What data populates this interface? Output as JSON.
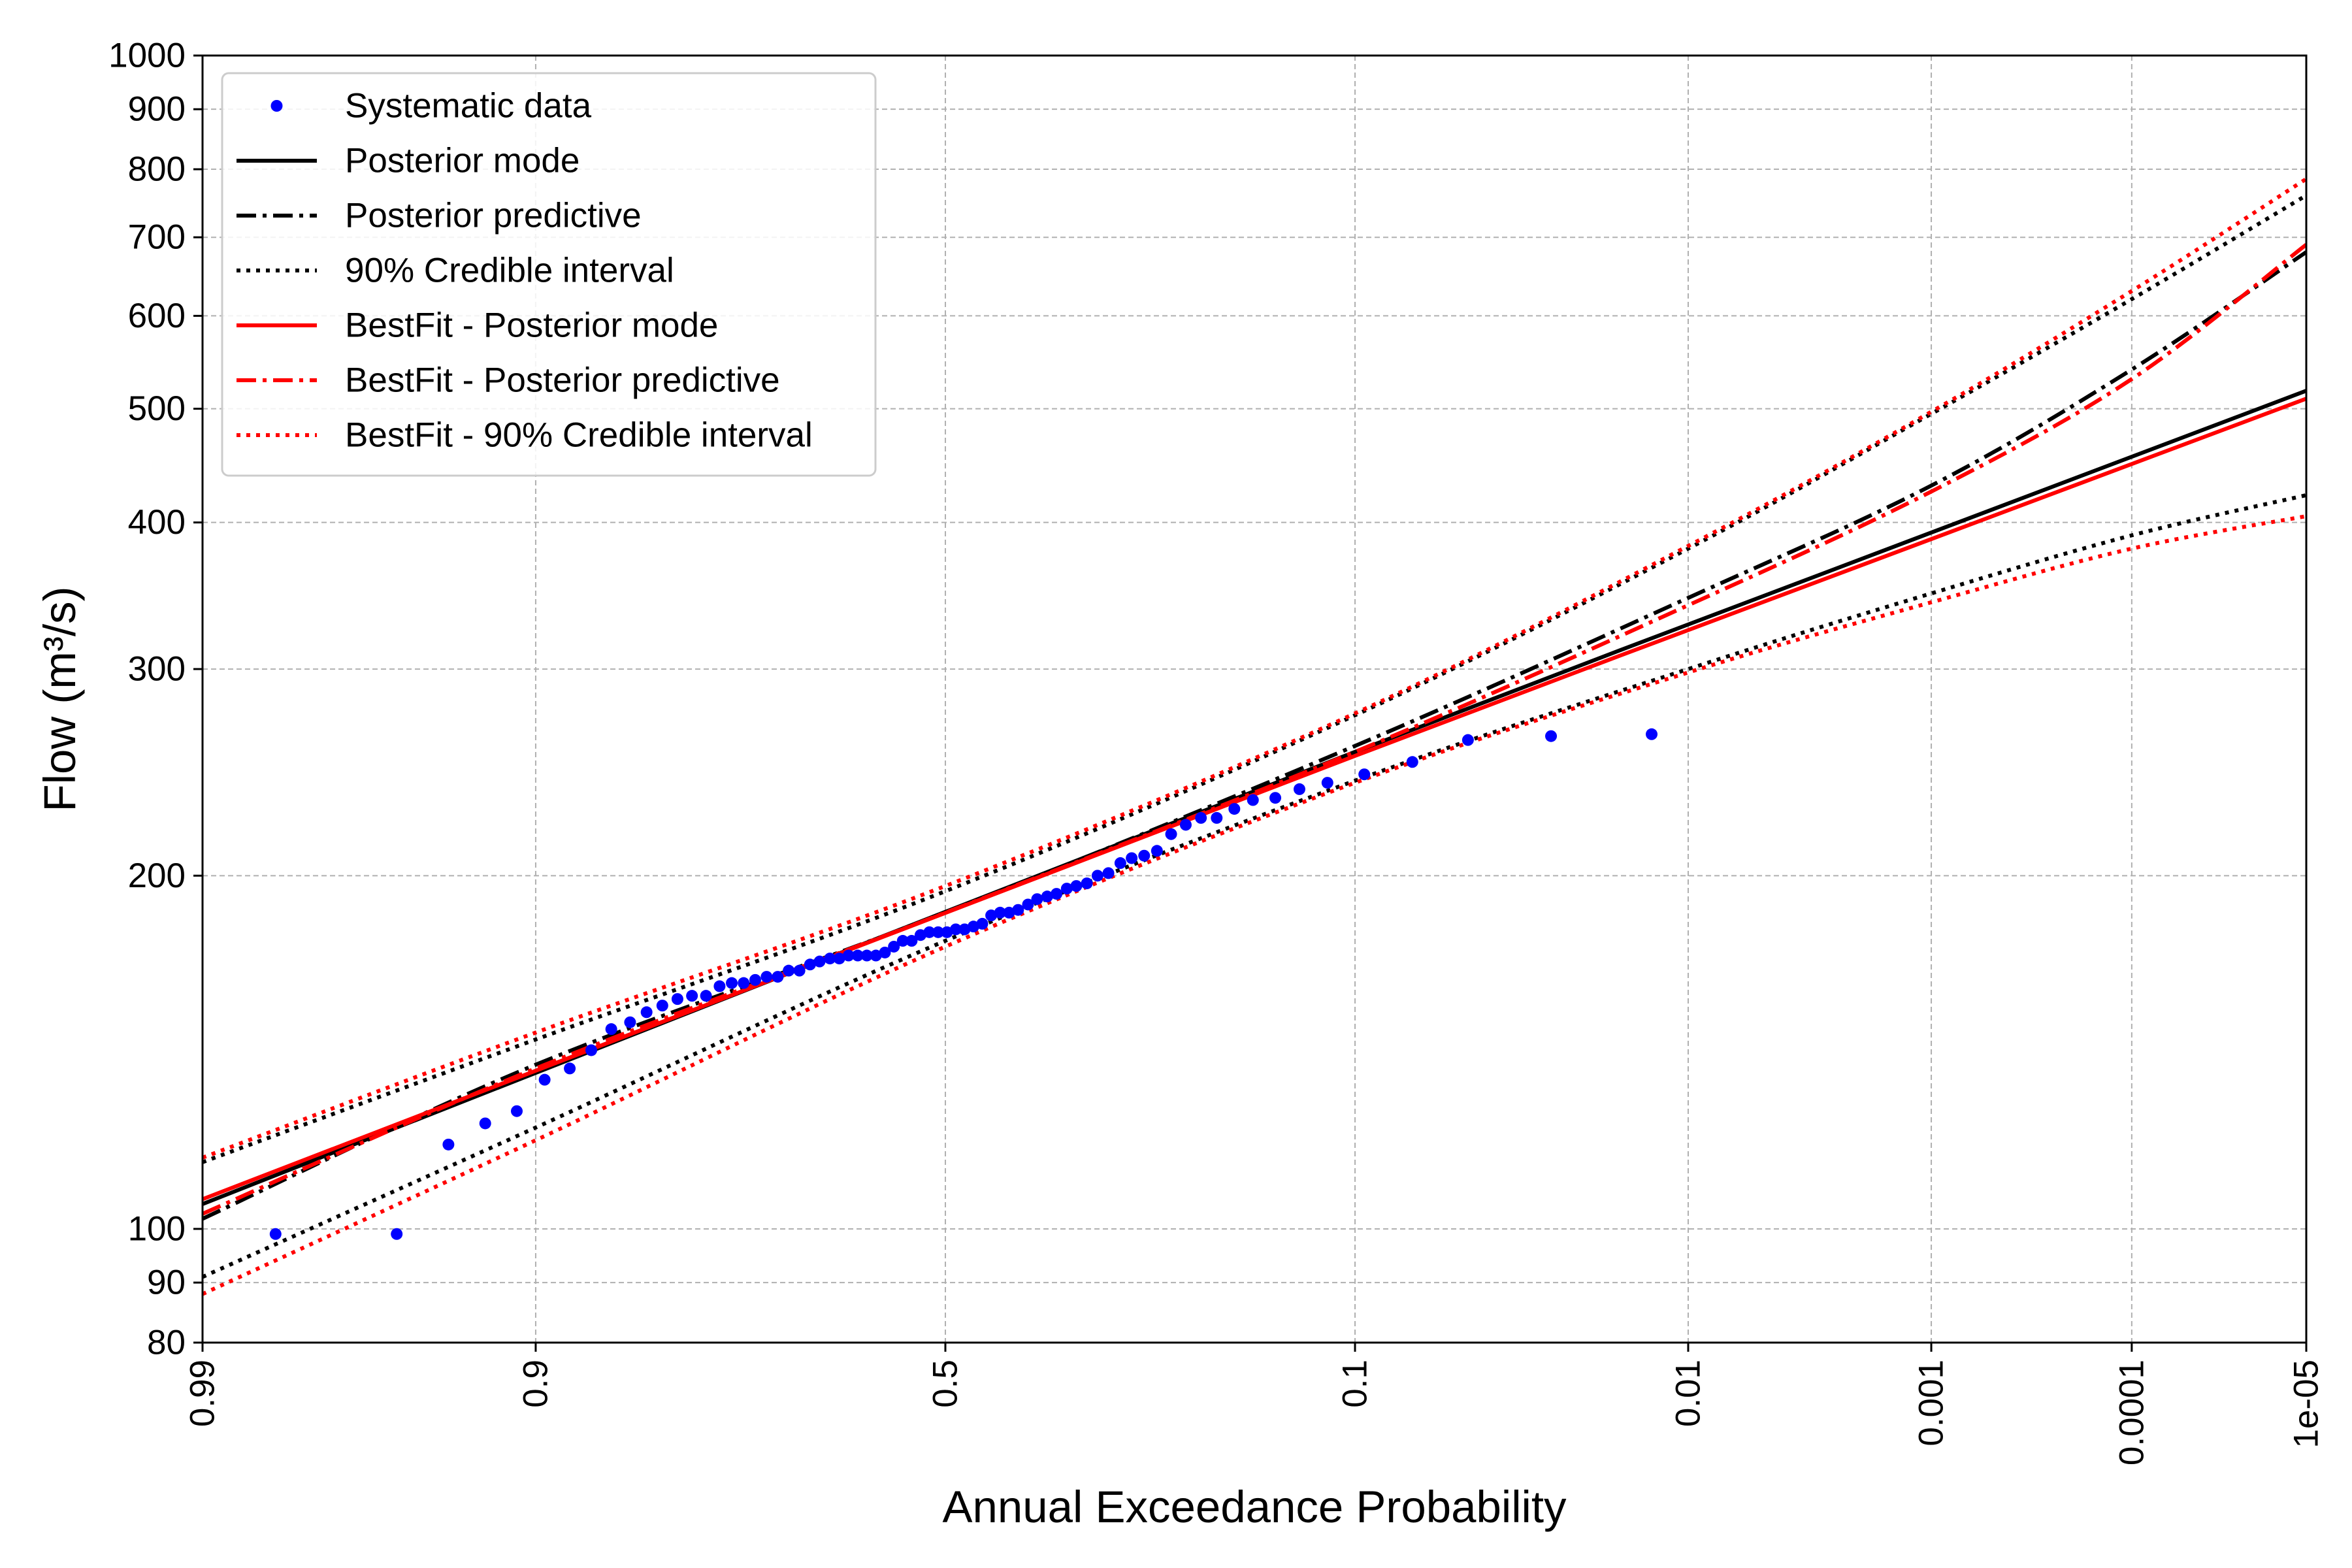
{
  "chart_data": {
    "type": "line",
    "xlabel": "Annual Exceedance Probability",
    "ylabel": "Flow (m³/s)",
    "x_scale": "normal-probability",
    "x_reversed": true,
    "xlim": [
      0.99,
      1e-05
    ],
    "x_ticks": [
      0.99,
      0.9,
      0.5,
      0.1,
      0.01,
      0.001,
      0.0001,
      1e-05
    ],
    "x_tick_labels": [
      "0.99",
      "0.9",
      "0.5",
      "0.1",
      "0.01",
      "0.001",
      "0.0001",
      "1e-05"
    ],
    "y_scale": "log",
    "ylim": [
      80,
      1000
    ],
    "y_ticks": [
      80,
      90,
      100,
      200,
      300,
      400,
      500,
      600,
      700,
      800,
      900,
      1000
    ],
    "y_tick_labels": [
      "80",
      "90",
      "100",
      "200",
      "300",
      "400",
      "500",
      "600",
      "700",
      "800",
      "900",
      "1000"
    ],
    "grid": true,
    "legend_position": "top-left",
    "legend": [
      {
        "label": "Systematic data",
        "style": "points",
        "color": "#0000ff"
      },
      {
        "label": "Posterior mode",
        "style": "solid",
        "color": "#000000"
      },
      {
        "label": "Posterior predictive",
        "style": "dashdot",
        "color": "#000000"
      },
      {
        "label": "90% Credible interval",
        "style": "dotted",
        "color": "#000000"
      },
      {
        "label": "BestFit - Posterior mode",
        "style": "solid",
        "color": "#ff0000"
      },
      {
        "label": "BestFit - Posterior predictive",
        "style": "dashdot",
        "color": "#ff0000"
      },
      {
        "label": "BestFit - 90% Credible interval",
        "style": "dotted",
        "color": "#ff0000"
      }
    ],
    "series": [
      {
        "name": "Systematic data",
        "kind": "points",
        "color": "#0000ff",
        "x": [
          0.982,
          0.957,
          0.94,
          0.925,
          0.91,
          0.895,
          0.88,
          0.866,
          0.852,
          0.838,
          0.825,
          0.812,
          0.799,
          0.786,
          0.773,
          0.76,
          0.748,
          0.736,
          0.724,
          0.712,
          0.7,
          0.688,
          0.676,
          0.664,
          0.653,
          0.641,
          0.63,
          0.619,
          0.608,
          0.597,
          0.586,
          0.575,
          0.564,
          0.553,
          0.542,
          0.531,
          0.52,
          0.509,
          0.498,
          0.487,
          0.476,
          0.465,
          0.454,
          0.443,
          0.432,
          0.421,
          0.41,
          0.398,
          0.387,
          0.375,
          0.364,
          0.352,
          0.341,
          0.329,
          0.317,
          0.305,
          0.292,
          0.28,
          0.267,
          0.254,
          0.24,
          0.226,
          0.212,
          0.198,
          0.183,
          0.168,
          0.151,
          0.134,
          0.116,
          0.095,
          0.072,
          0.051,
          0.029,
          0.0135
        ],
        "y": [
          99,
          99,
          118,
          123,
          126,
          134,
          137,
          142,
          148,
          150,
          153,
          155,
          157,
          158,
          158,
          161,
          162,
          162,
          163,
          164,
          164,
          166,
          166,
          168,
          169,
          170,
          170,
          171,
          171,
          171,
          171,
          172,
          174,
          176,
          176,
          178,
          179,
          179,
          179,
          180,
          180,
          181,
          182,
          185,
          186,
          186,
          187,
          189,
          191,
          192,
          193,
          195,
          196,
          197,
          200,
          201,
          205,
          207,
          208,
          210,
          217,
          221,
          224,
          224,
          228,
          232,
          233,
          237,
          240,
          244,
          250,
          261,
          263,
          264
        ]
      },
      {
        "name": "Posterior mode",
        "kind": "line",
        "style": "solid",
        "color": "#000000",
        "x": [
          0.99,
          0.1,
          1e-05
        ],
        "y": [
          105,
          255,
          518
        ]
      },
      {
        "name": "Posterior predictive",
        "kind": "line",
        "style": "dashdot",
        "color": "#000000",
        "x": [
          0.99,
          0.9,
          0.5,
          0.1,
          0.01,
          0.001,
          0.0001,
          1e-05
        ],
        "y": [
          102,
          138,
          186,
          258,
          345,
          430,
          540,
          680
        ]
      },
      {
        "name": "90% Credible interval (upper)",
        "kind": "line",
        "style": "dotted",
        "color": "#000000",
        "x": [
          0.99,
          0.9,
          0.5,
          0.1,
          0.01,
          0.001,
          0.0001,
          1e-05
        ],
        "y": [
          114,
          145,
          194,
          274,
          380,
          495,
          620,
          760
        ]
      },
      {
        "name": "90% Credible interval (lower)",
        "kind": "line",
        "style": "dotted",
        "color": "#000000",
        "x": [
          0.99,
          0.9,
          0.5,
          0.1,
          0.01,
          0.001,
          0.0001,
          1e-05
        ],
        "y": [
          91,
          122,
          176,
          241,
          300,
          348,
          390,
          422
        ]
      },
      {
        "name": "BestFit - Posterior mode",
        "kind": "line",
        "style": "solid",
        "color": "#ff0000",
        "x": [
          0.99,
          0.1,
          1e-05
        ],
        "y": [
          106,
          253,
          510
        ]
      },
      {
        "name": "BestFit - Posterior predictive",
        "kind": "line",
        "style": "dashdot",
        "color": "#ff0000",
        "x": [
          0.99,
          0.9,
          0.5,
          0.1,
          0.01,
          0.001,
          0.0001,
          1e-05
        ],
        "y": [
          103,
          137,
          186,
          255,
          340,
          425,
          530,
          690
        ]
      },
      {
        "name": "BestFit - 90% Credible interval (upper)",
        "kind": "line",
        "style": "dotted",
        "color": "#ff0000",
        "x": [
          0.99,
          0.9,
          0.5,
          0.1,
          0.01,
          0.001,
          0.0001,
          1e-05
        ],
        "y": [
          115,
          147,
          196,
          275,
          382,
          497,
          630,
          785
        ]
      },
      {
        "name": "BestFit - 90% Credible interval (lower)",
        "kind": "line",
        "style": "dotted",
        "color": "#ff0000",
        "x": [
          0.99,
          0.9,
          0.5,
          0.1,
          0.01,
          0.001,
          0.0001,
          1e-05
        ],
        "y": [
          88,
          119,
          174,
          240,
          298,
          342,
          380,
          405
        ]
      }
    ]
  }
}
